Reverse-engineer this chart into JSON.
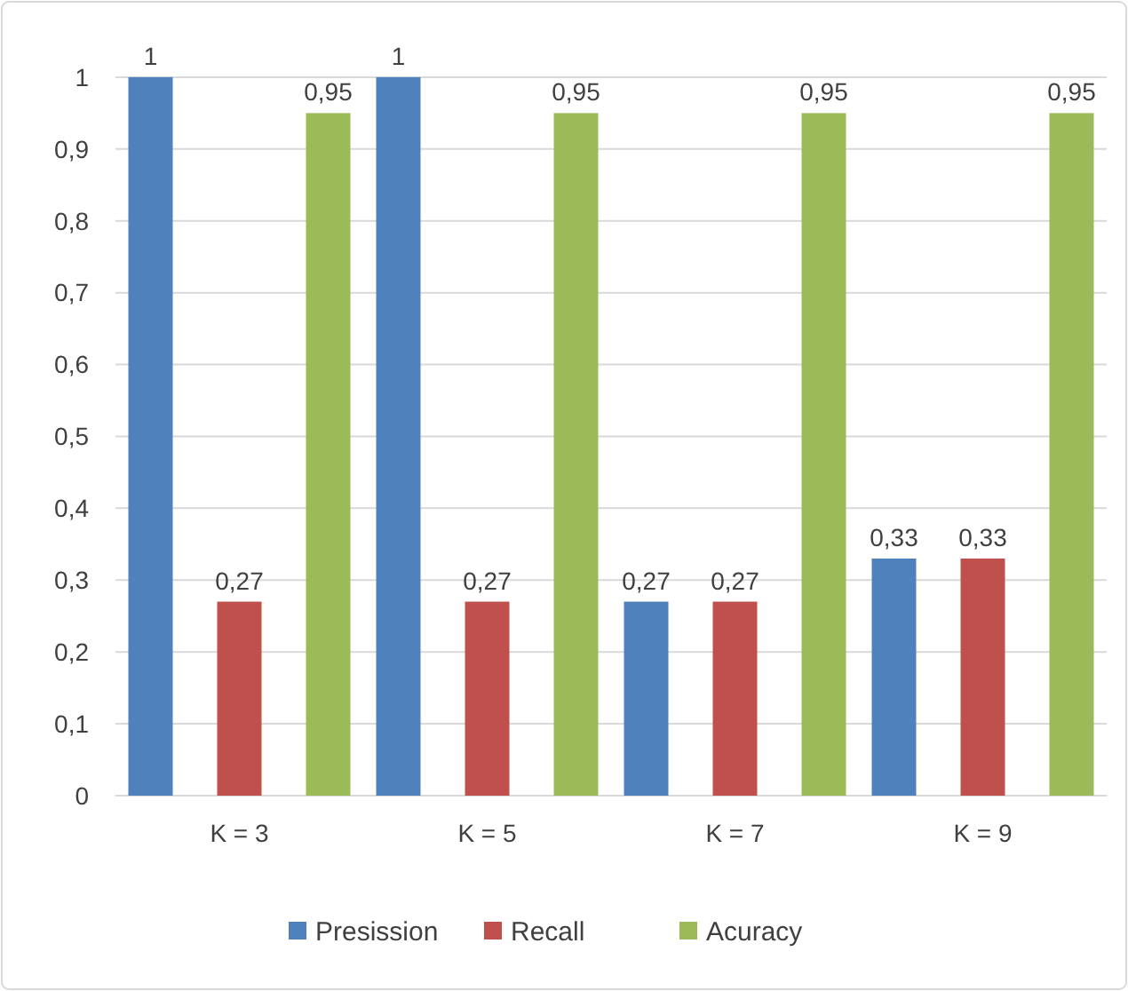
{
  "chart_data": {
    "type": "bar",
    "categories": [
      "K = 3",
      "K = 5",
      "K = 7",
      "K = 9"
    ],
    "series": [
      {
        "name": "Presission",
        "color": "#4f81bd",
        "values": [
          1,
          1,
          0.27,
          0.33
        ],
        "value_labels": [
          "1",
          "1",
          "0,27",
          "0,33"
        ]
      },
      {
        "name": "Recall",
        "color": "#c0504d",
        "values": [
          0.27,
          0.27,
          0.27,
          0.33
        ],
        "value_labels": [
          "0,27",
          "0,27",
          "0,27",
          "0,33"
        ]
      },
      {
        "name": "Acuracy",
        "color": "#9bbb59",
        "values": [
          0.95,
          0.95,
          0.95,
          0.95
        ],
        "value_labels": [
          "0,95",
          "0,95",
          "0,95",
          "0,95"
        ]
      }
    ],
    "ylim": [
      0,
      1.1
    ],
    "yticks": [
      0,
      {
        "value": 0.1,
        "label": "0,1"
      },
      {
        "value": 0.2,
        "label": "0,2"
      },
      {
        "value": 0.3,
        "label": "0,3"
      },
      {
        "value": 0.4,
        "label": "0,4"
      },
      {
        "value": 0.5,
        "label": "0,5"
      },
      {
        "value": 0.6,
        "label": "0,6"
      },
      {
        "value": 0.7,
        "label": "0,7"
      },
      {
        "value": 0.8,
        "label": "0,8"
      },
      {
        "value": 0.9,
        "label": "0,9"
      },
      1
    ],
    "grid": "y",
    "legend": "bottom"
  }
}
